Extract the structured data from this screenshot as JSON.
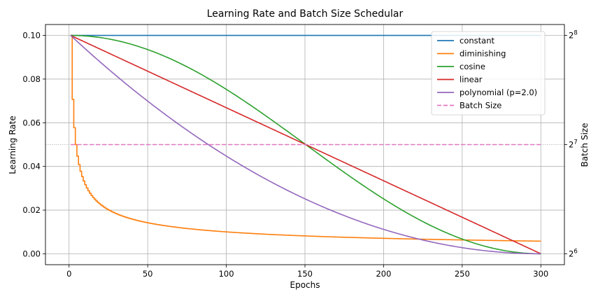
{
  "chart_data": {
    "type": "line",
    "title": "Learning Rate and Batch Size Schedular",
    "xlabel": "Epochs",
    "ylabel": "Learning Rate",
    "y2label": "Batch Size",
    "xlim": [
      -15,
      315
    ],
    "ylim": [
      -0.005,
      0.105
    ],
    "xticks": [
      0,
      50,
      100,
      150,
      200,
      250,
      300
    ],
    "yticks": [
      0.0,
      0.02,
      0.04,
      0.06,
      0.08,
      0.1
    ],
    "ytick_labels": [
      "0.00",
      "0.02",
      "0.04",
      "0.06",
      "0.08",
      "0.10"
    ],
    "y2ticks": [
      {
        "value": 0.0,
        "base": "2",
        "exp": "6"
      },
      {
        "value": 0.05,
        "base": "2",
        "exp": "7"
      },
      {
        "value": 0.1,
        "base": "2",
        "exp": "8"
      }
    ],
    "grid": true,
    "legend_position": "top-right",
    "series": [
      {
        "name": "constant",
        "kind": "constant",
        "color": "#1f77b4",
        "lr_max": 0.1,
        "epochs": [
          1,
          300
        ]
      },
      {
        "name": "diminishing",
        "kind": "diminishing",
        "color": "#ff7f0e",
        "lr_max": 0.1,
        "epochs": [
          1,
          300
        ]
      },
      {
        "name": "cosine",
        "kind": "cosine",
        "color": "#2ca02c",
        "lr_max": 0.1,
        "epochs": [
          1,
          300
        ]
      },
      {
        "name": "linear",
        "kind": "linear",
        "color": "#d62728",
        "lr_max": 0.1,
        "epochs": [
          1,
          300
        ]
      },
      {
        "name": "polynomial (p=2.0)",
        "kind": "polynomial",
        "power": 2.0,
        "color": "#9467bd",
        "lr_max": 0.1,
        "epochs": [
          1,
          300
        ]
      },
      {
        "name": "Batch Size",
        "kind": "batch",
        "color": "#e377c2",
        "dashed": true,
        "batch_size": 128,
        "epochs": [
          1,
          300
        ]
      }
    ]
  }
}
